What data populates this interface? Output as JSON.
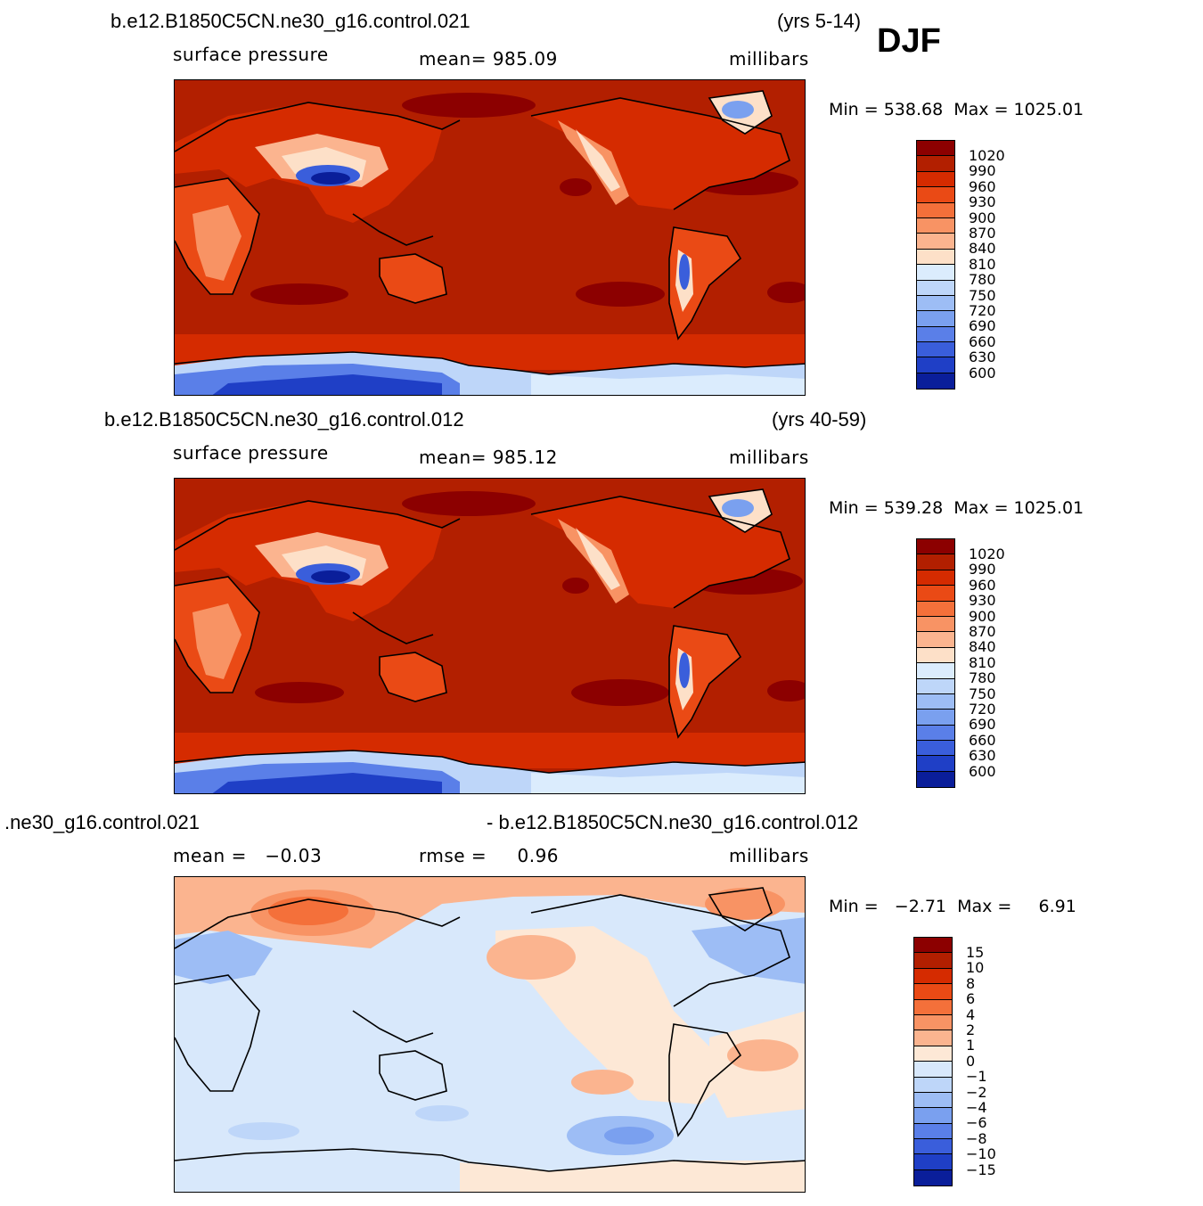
{
  "season": "DJF",
  "units": "millibars",
  "panels": [
    {
      "case": "b.e12.B1850C5CN.ne30_g16.control.021",
      "years": "(yrs 5-14)",
      "variable": "surface pressure",
      "stat": "mean= 985.09",
      "minmax": "Min = 538.68  Max = 1025.01",
      "kind": "abs"
    },
    {
      "case": "b.e12.B1850C5CN.ne30_g16.control.012",
      "years": "(yrs 40-59)",
      "variable": "surface pressure",
      "stat": "mean= 985.12",
      "minmax": "Min = 539.28  Max = 1025.01",
      "kind": "abs"
    },
    {
      "case": ".ne30_g16.control.021",
      "case2": "- b.e12.B1850C5CN.ne30_g16.control.012",
      "variable": "mean =   −0.03",
      "stat": "rmse =     0.96",
      "minmax": "Min =   −2.71  Max =     6.91",
      "kind": "diff"
    }
  ],
  "abs_scale": {
    "labels": [
      "1020",
      "990",
      "960",
      "930",
      "900",
      "870",
      "840",
      "810",
      "780",
      "750",
      "720",
      "690",
      "660",
      "630",
      "600"
    ],
    "colors": [
      "#8c0000",
      "#b21f00",
      "#d52b00",
      "#ea4a15",
      "#f4703a",
      "#f89364",
      "#fbb48f",
      "#fde0c8",
      "#dbecfd",
      "#bed6f9",
      "#9dbdf5",
      "#7aa0ef",
      "#5a7fe8",
      "#3a5edb",
      "#1f3fc6",
      "#0a1e9a"
    ]
  },
  "diff_scale": {
    "labels": [
      "15",
      "10",
      "8",
      "6",
      "4",
      "2",
      "1",
      "0",
      "−1",
      "−2",
      "−4",
      "−6",
      "−8",
      "−10",
      "−15"
    ],
    "colors": [
      "#8c0000",
      "#b21f00",
      "#d52b00",
      "#ea4a15",
      "#f4703a",
      "#f89364",
      "#fbb48f",
      "#fde8d6",
      "#d8e8fb",
      "#bed6f9",
      "#9dbdf5",
      "#7aa0ef",
      "#5a7fe8",
      "#3a5edb",
      "#1f3fc6",
      "#0a1e9a"
    ]
  }
}
